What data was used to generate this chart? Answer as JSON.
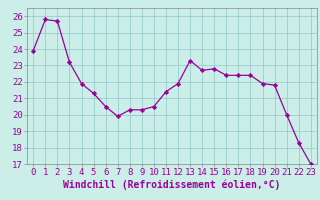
{
  "x": [
    0,
    1,
    2,
    3,
    4,
    5,
    6,
    7,
    8,
    9,
    10,
    11,
    12,
    13,
    14,
    15,
    16,
    17,
    18,
    19,
    20,
    21,
    22,
    23
  ],
  "y": [
    23.9,
    25.8,
    25.7,
    23.2,
    21.9,
    21.3,
    20.5,
    19.9,
    20.3,
    20.3,
    20.5,
    21.4,
    21.9,
    23.3,
    22.7,
    22.8,
    22.4,
    22.4,
    22.4,
    21.9,
    21.8,
    20.0,
    18.3,
    17.0
  ],
  "line_color": "#990099",
  "marker_color": "#990099",
  "grid_color": "#99cccc",
  "xlabel": "Windchill (Refroidissement éolien,°C)",
  "xlim": [
    -0.5,
    23.5
  ],
  "ylim": [
    17,
    26.5
  ],
  "yticks": [
    17,
    18,
    19,
    20,
    21,
    22,
    23,
    24,
    25,
    26
  ],
  "xticks": [
    0,
    1,
    2,
    3,
    4,
    5,
    6,
    7,
    8,
    9,
    10,
    11,
    12,
    13,
    14,
    15,
    16,
    17,
    18,
    19,
    20,
    21,
    22,
    23
  ],
  "xlabel_fontsize": 7.0,
  "tick_fontsize": 6.5,
  "axes_bg": "#cceee8",
  "fig_bg": "#cceee8",
  "tick_color": "#990099",
  "xlabel_color": "#990099"
}
